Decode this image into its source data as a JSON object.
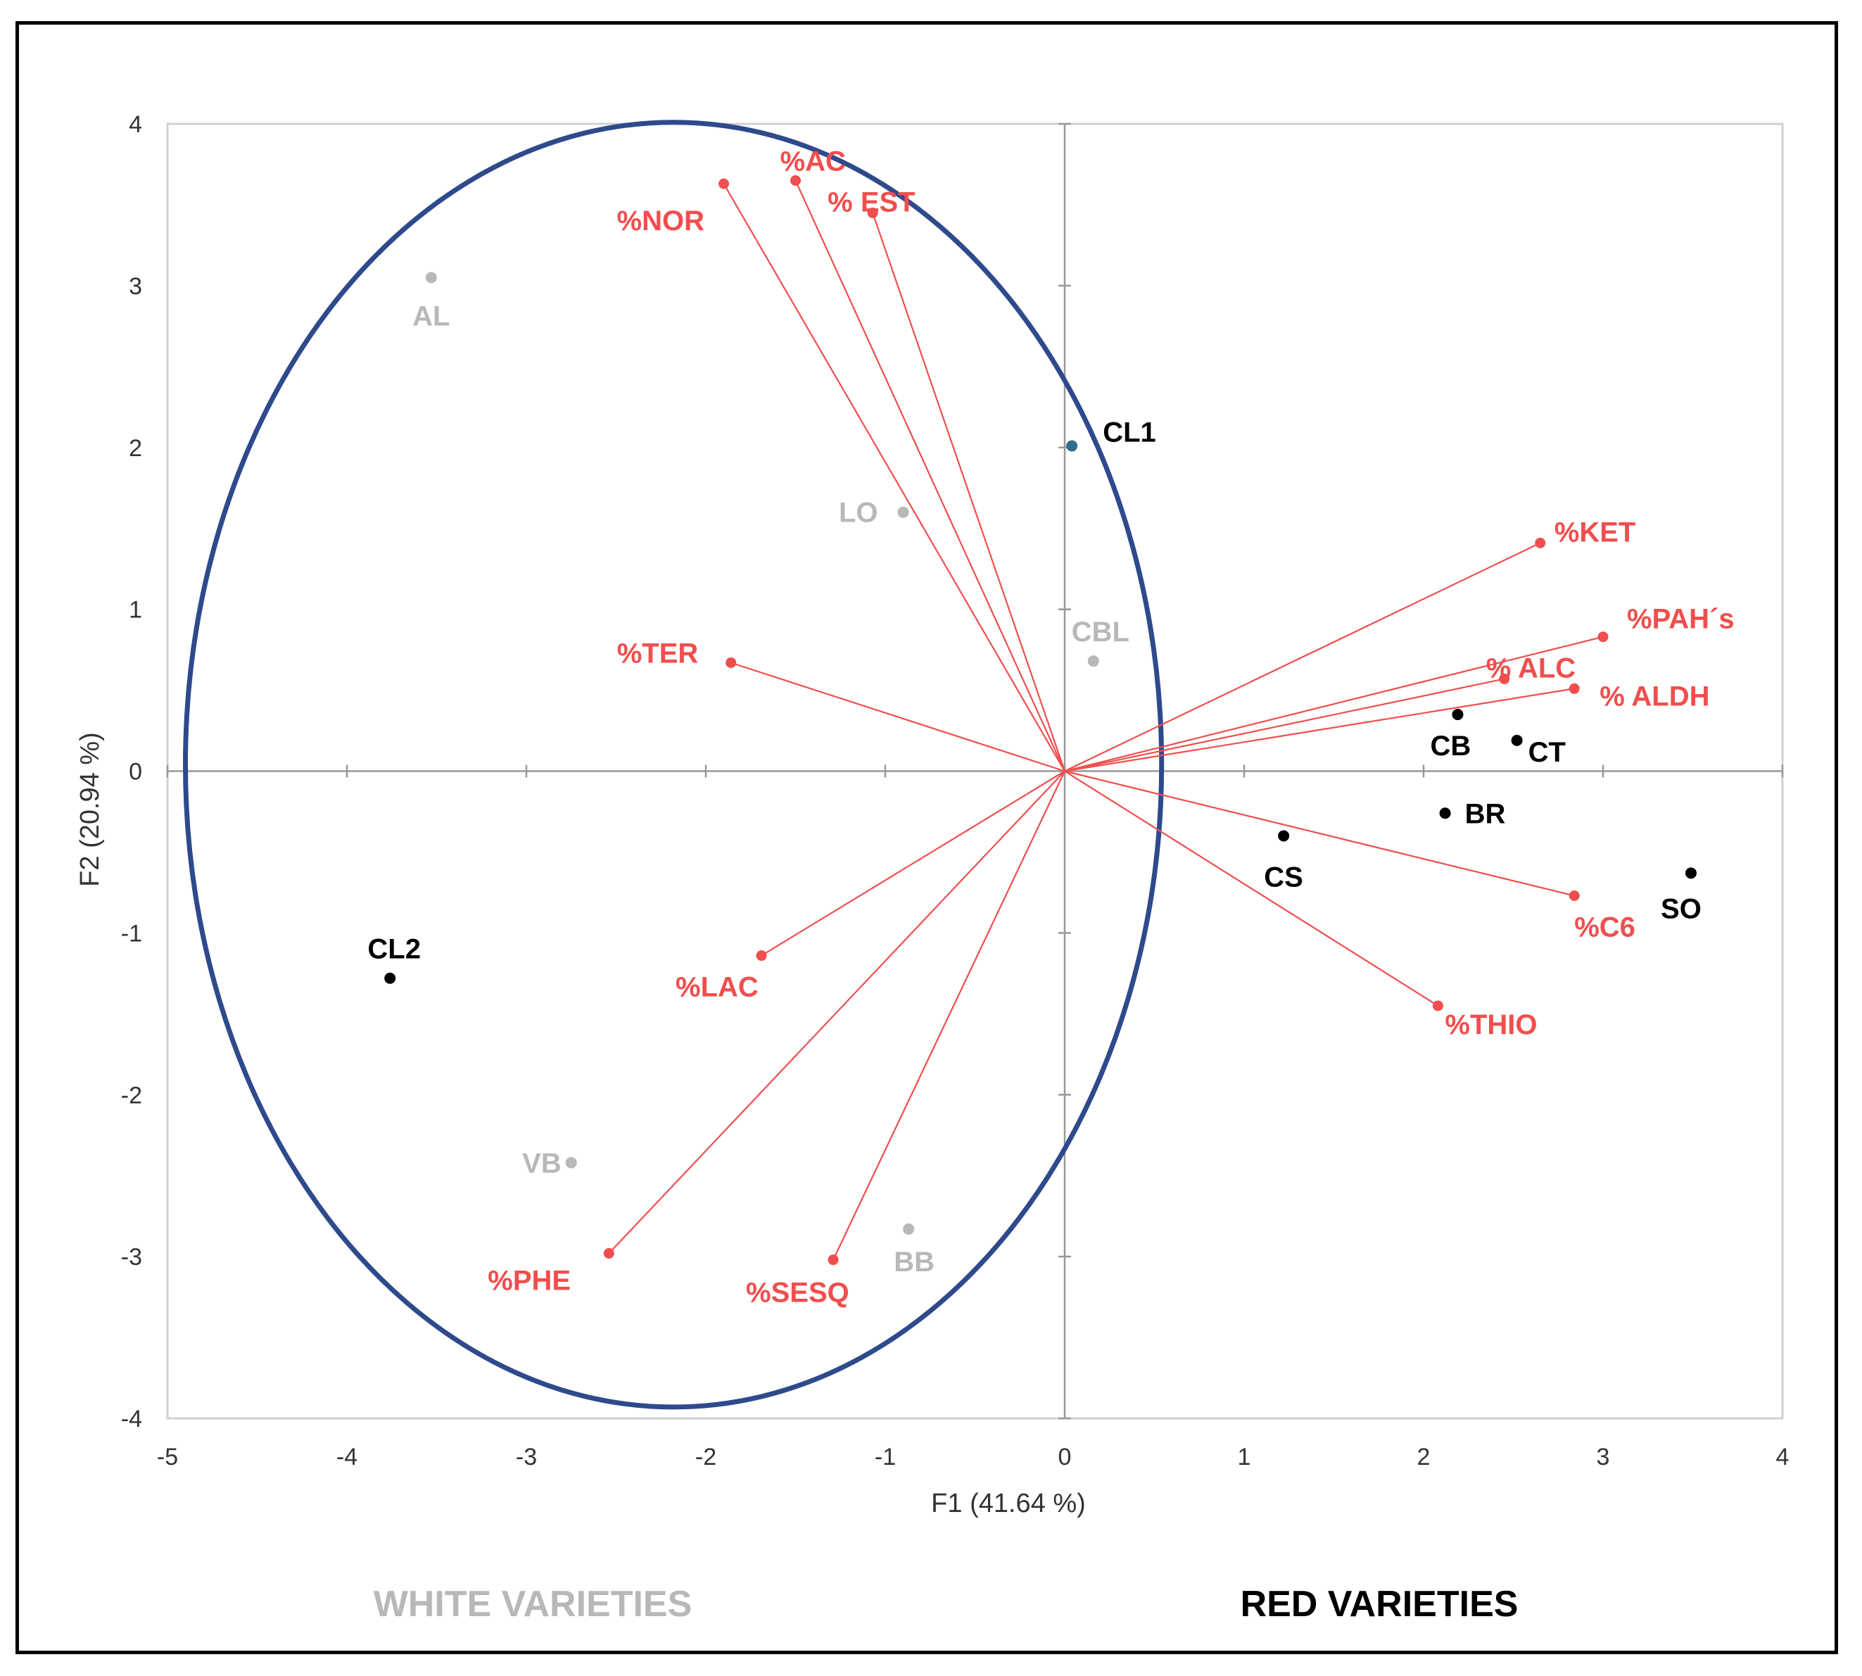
{
  "chart_data": {
    "type": "scatter",
    "subtype": "pca-biplot",
    "xlabel": "F1 (41.64 %)",
    "ylabel": "F2 (20.94 %)",
    "xlim": [
      -5,
      4
    ],
    "ylim": [
      -4,
      4
    ],
    "xticks": [
      "-5",
      "-4",
      "-3",
      "-2",
      "-1",
      "0",
      "1",
      "2",
      "3",
      "4"
    ],
    "yticks": [
      "-4",
      "-3",
      "-2",
      "-1",
      "0",
      "1",
      "2",
      "3",
      "4"
    ],
    "vectors": [
      {
        "label": "%AC",
        "x": -1.5,
        "y": 3.65
      },
      {
        "label": "% EST",
        "x": -1.07,
        "y": 3.45
      },
      {
        "label": "%NOR",
        "x": -1.9,
        "y": 3.63
      },
      {
        "label": "%TER",
        "x": -1.86,
        "y": 0.67
      },
      {
        "label": "%KET",
        "x": 2.65,
        "y": 1.41
      },
      {
        "label": "%PAH´s",
        "x": 3.0,
        "y": 0.83
      },
      {
        "label": "% ALC",
        "x": 2.45,
        "y": 0.57
      },
      {
        "label": "% ALDH",
        "x": 2.84,
        "y": 0.51
      },
      {
        "label": "%C6",
        "x": 2.84,
        "y": -0.77
      },
      {
        "label": "%THIO",
        "x": 2.08,
        "y": -1.45
      },
      {
        "label": "%LAC",
        "x": -1.69,
        "y": -1.14
      },
      {
        "label": "%PHE",
        "x": -2.54,
        "y": -2.98
      },
      {
        "label": "%SESQ",
        "x": -1.29,
        "y": -3.02
      }
    ],
    "points": [
      {
        "label": "AL",
        "x": -3.53,
        "y": 3.05,
        "group": "white"
      },
      {
        "label": "LO",
        "x": -0.9,
        "y": 1.6,
        "group": "white"
      },
      {
        "label": "CBL",
        "x": 0.16,
        "y": 0.68,
        "group": "white"
      },
      {
        "label": "VB",
        "x": -2.75,
        "y": -2.42,
        "group": "white"
      },
      {
        "label": "BB",
        "x": -0.87,
        "y": -2.83,
        "group": "white"
      },
      {
        "label": "CB",
        "x": 2.19,
        "y": 0.35,
        "group": "red"
      },
      {
        "label": "CT",
        "x": 2.52,
        "y": 0.19,
        "group": "red"
      },
      {
        "label": "BR",
        "x": 2.12,
        "y": -0.26,
        "group": "red"
      },
      {
        "label": "CS",
        "x": 1.22,
        "y": -0.4,
        "group": "red"
      },
      {
        "label": "SO",
        "x": 3.49,
        "y": -0.63,
        "group": "red"
      },
      {
        "label": "CL1",
        "x": 0.04,
        "y": 2.01,
        "group": "cluster"
      },
      {
        "label": "CL2",
        "x": -3.76,
        "y": -1.28,
        "group": "cluster"
      }
    ],
    "ellipse": {
      "cx": -2.18,
      "cy": 0.04,
      "rx": 2.72,
      "ry": 3.97
    },
    "colors": {
      "vector": "#f04e4e",
      "white_points": "#b8b8b8",
      "red_points": "#000000",
      "cl1_point": "#2e6e8a",
      "ellipse": "#2e4a8c",
      "axis": "#999999"
    },
    "grid": false,
    "legend": "none"
  },
  "group_labels": {
    "white": "WHITE VARIETIES",
    "red": "RED VARIETIES"
  }
}
